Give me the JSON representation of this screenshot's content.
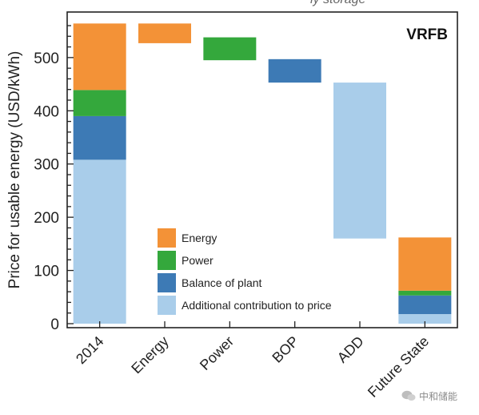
{
  "top_fragment": "ly storage",
  "chart_data": {
    "type": "waterfall-bar",
    "title": "VRFB",
    "xlabel": "",
    "ylabel": "Price for usable energy (USD/kWh)",
    "ylim": [
      0,
      580
    ],
    "yticks": [
      0,
      100,
      200,
      300,
      400,
      500
    ],
    "grid": false,
    "legend_position": "center",
    "categories": [
      "2014",
      "Energy",
      "Power",
      "BOP",
      "ADD",
      "Future State"
    ],
    "components": [
      {
        "name": "Energy",
        "color": "#f39237"
      },
      {
        "name": "Power",
        "color": "#34a83c"
      },
      {
        "name": "Balance of plant",
        "color": "#3d7ab5"
      },
      {
        "name": "Additional contribution to price",
        "color": "#a9cdea"
      }
    ],
    "bars": [
      {
        "category": "2014",
        "segments": [
          {
            "component": "Additional contribution to price",
            "bottom": 0,
            "top": 308
          },
          {
            "component": "Balance of plant",
            "bottom": 308,
            "top": 390
          },
          {
            "component": "Power",
            "bottom": 390,
            "top": 439
          },
          {
            "component": "Energy",
            "bottom": 439,
            "top": 564
          }
        ]
      },
      {
        "category": "Energy",
        "segments": [
          {
            "component": "Energy",
            "bottom": 527,
            "top": 564
          }
        ]
      },
      {
        "category": "Power",
        "segments": [
          {
            "component": "Power",
            "bottom": 495,
            "top": 538
          }
        ]
      },
      {
        "category": "BOP",
        "segments": [
          {
            "component": "Balance of plant",
            "bottom": 453,
            "top": 497
          }
        ]
      },
      {
        "category": "ADD",
        "segments": [
          {
            "component": "Additional contribution to price",
            "bottom": 160,
            "top": 453
          }
        ]
      },
      {
        "category": "Future State",
        "segments": [
          {
            "component": "Additional contribution to price",
            "bottom": 0,
            "top": 18
          },
          {
            "component": "Balance of plant",
            "bottom": 18,
            "top": 53
          },
          {
            "component": "Power",
            "bottom": 53,
            "top": 62
          },
          {
            "component": "Energy",
            "bottom": 62,
            "top": 162
          }
        ]
      }
    ]
  },
  "watermark": {
    "text": "中和储能"
  }
}
